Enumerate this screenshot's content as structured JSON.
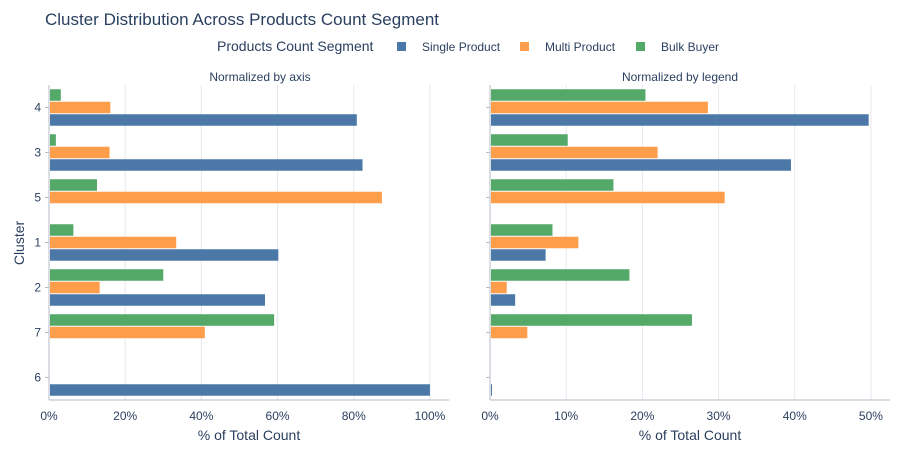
{
  "title": "Cluster Distribution Across Products Count Segment",
  "legend_title": "Products Count Segment",
  "ylabel": "Cluster",
  "colors": {
    "Single Product": "#4c78a8",
    "Multi Product": "#ff9e4a",
    "Bulk Buyer": "#54a868"
  },
  "chart_data": {
    "type": "bar",
    "orientation": "horizontal",
    "series_names": [
      "Single Product",
      "Multi Product",
      "Bulk Buyer"
    ],
    "categories": [
      "4",
      "3",
      "5",
      "1",
      "2",
      "7",
      "6"
    ],
    "panels": [
      {
        "title": "Normalized by axis",
        "xlabel": "% of Total Count",
        "xlim": [
          0,
          105
        ],
        "xticks": [
          0,
          20,
          40,
          60,
          80,
          100
        ],
        "xtick_labels": [
          "0%",
          "20%",
          "40%",
          "60%",
          "80%",
          "100%"
        ],
        "series": [
          {
            "name": "Single Product",
            "values": [
              80.8,
              82.3,
              0,
              60.2,
              56.7,
              0,
              100
            ]
          },
          {
            "name": "Multi Product",
            "values": [
              16.1,
              15.9,
              87.4,
              33.4,
              13.3,
              40.9,
              0
            ]
          },
          {
            "name": "Bulk Buyer",
            "values": [
              3.1,
              1.8,
              12.6,
              6.4,
              30.0,
              59.1,
              0
            ]
          }
        ]
      },
      {
        "title": "Normalized by legend",
        "xlabel": "% of Total Count",
        "xlim": [
          0,
          52.5
        ],
        "xticks": [
          0,
          10,
          20,
          30,
          40,
          50
        ],
        "xtick_labels": [
          "0%",
          "10%",
          "20%",
          "30%",
          "40%",
          "50%"
        ],
        "series": [
          {
            "name": "Single Product",
            "values": [
              49.7,
              39.5,
              0,
              7.3,
              3.3,
              0,
              0.2
            ]
          },
          {
            "name": "Multi Product",
            "values": [
              28.6,
              22.0,
              30.8,
              11.6,
              2.2,
              4.9,
              0
            ]
          },
          {
            "name": "Bulk Buyer",
            "values": [
              20.4,
              10.2,
              16.2,
              8.2,
              18.3,
              26.5,
              0
            ]
          }
        ]
      }
    ]
  }
}
